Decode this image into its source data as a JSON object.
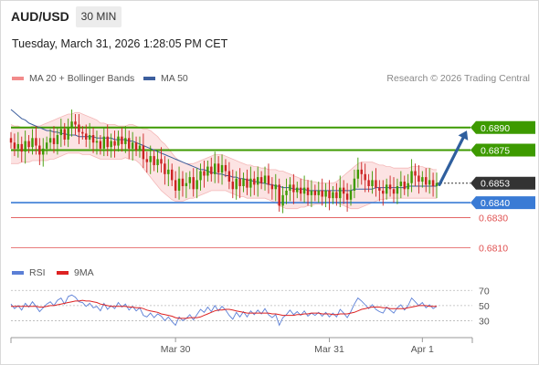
{
  "header": {
    "symbol": "AUD/USD",
    "timeframe": "30 MIN",
    "datetime": "Tuesday, March 31, 2026 1:28:05 PM CET"
  },
  "legend": {
    "ma20_bb": "MA 20 + Bollinger Bands",
    "ma50": "MA 50",
    "ma20_color": "#f28b8b",
    "ma50_color": "#3d5f9e"
  },
  "credit": "Research © 2026 Trading Central",
  "colors": {
    "green_level": "#3d9a00",
    "blue_level": "#3a7bd5",
    "red_level": "#e05050",
    "bull_candle": "#3d9a00",
    "bear_candle": "#cc2222",
    "current_price_bg": "#333333",
    "arrow": "#2f5f9e",
    "rsi": "#5b7fd6",
    "rsi_ma": "#dd2222"
  },
  "price_levels": [
    {
      "value": 0.689,
      "label": "0.6890",
      "kind": "resistance",
      "style": "boxed-green"
    },
    {
      "value": 0.6875,
      "label": "0.6875",
      "kind": "resistance",
      "style": "boxed-green"
    },
    {
      "value": 0.6853,
      "label": "0.6853",
      "kind": "current",
      "style": "boxed-dark"
    },
    {
      "value": 0.684,
      "label": "0.6840",
      "kind": "pivot",
      "style": "boxed-blue"
    },
    {
      "value": 0.683,
      "label": "0.6830",
      "kind": "support",
      "style": "text-red"
    },
    {
      "value": 0.681,
      "label": "0.6810",
      "kind": "support",
      "style": "text-red"
    }
  ],
  "rsi_panel": {
    "legend_rsi": "RSI",
    "legend_ma": "9MA",
    "levels": [
      70,
      50,
      30
    ],
    "level_labels": [
      "70",
      "50",
      "30"
    ],
    "ylim": [
      10,
      80
    ]
  },
  "chart_data": {
    "type": "candlestick",
    "ylim": [
      0.6803,
      0.6916
    ],
    "x_tick_labels": [
      {
        "label": "Mar 30",
        "index": 46
      },
      {
        "label": "Mar 31",
        "index": 89
      },
      {
        "label": "Apr 1",
        "index": 115
      }
    ],
    "closes": [
      0.688,
      0.6876,
      0.6879,
      0.6874,
      0.6881,
      0.6877,
      0.6883,
      0.6878,
      0.6872,
      0.6876,
      0.688,
      0.6883,
      0.6879,
      0.6885,
      0.6889,
      0.6882,
      0.689,
      0.6894,
      0.6892,
      0.6887,
      0.6886,
      0.6882,
      0.6885,
      0.688,
      0.6881,
      0.6876,
      0.6884,
      0.6877,
      0.6881,
      0.6878,
      0.6884,
      0.6879,
      0.6883,
      0.6876,
      0.688,
      0.6875,
      0.6878,
      0.6869,
      0.6867,
      0.6871,
      0.6865,
      0.6869,
      0.6866,
      0.6859,
      0.6862,
      0.6855,
      0.6848,
      0.6856,
      0.6851,
      0.6853,
      0.6857,
      0.6849,
      0.6855,
      0.6861,
      0.6858,
      0.6864,
      0.6859,
      0.6866,
      0.686,
      0.6865,
      0.6861,
      0.6854,
      0.6849,
      0.6856,
      0.6851,
      0.6856,
      0.685,
      0.6856,
      0.6852,
      0.6857,
      0.6853,
      0.6858,
      0.6852,
      0.6849,
      0.6852,
      0.6838,
      0.6845,
      0.6848,
      0.6852,
      0.6847,
      0.685,
      0.6846,
      0.685,
      0.6845,
      0.6848,
      0.6845,
      0.6848,
      0.6844,
      0.6848,
      0.6843,
      0.6847,
      0.6843,
      0.685,
      0.6846,
      0.6842,
      0.6848,
      0.6856,
      0.6862,
      0.6859,
      0.6855,
      0.6851,
      0.6855,
      0.685,
      0.6848,
      0.6846,
      0.6852,
      0.6849,
      0.6846,
      0.6851,
      0.6854,
      0.6849,
      0.6853,
      0.6861,
      0.6858,
      0.6854,
      0.6857,
      0.6852,
      0.6855,
      0.6851,
      0.6853
    ],
    "ma50": [
      0.6902,
      0.69,
      0.6898,
      0.6896,
      0.6895,
      0.6893,
      0.6892,
      0.6891,
      0.689,
      0.6889,
      0.6888,
      0.6888,
      0.6887,
      0.6887,
      0.6886,
      0.6886,
      0.6885,
      0.6885,
      0.6885,
      0.6884,
      0.6884,
      0.6884,
      0.6884,
      0.6884,
      0.6883,
      0.6883,
      0.6883,
      0.6883,
      0.6883,
      0.6882,
      0.6882,
      0.6882,
      0.6882,
      0.6881,
      0.6881,
      0.688,
      0.6879,
      0.6878,
      0.6877,
      0.6876,
      0.6875,
      0.6874,
      0.6873,
      0.6872,
      0.6871,
      0.687,
      0.6869,
      0.6868,
      0.6867,
      0.6866,
      0.6865,
      0.6864,
      0.6863,
      0.6862,
      0.6862,
      0.6861,
      0.686,
      0.686,
      0.6859,
      0.6859,
      0.6858,
      0.6858,
      0.6857,
      0.6857,
      0.6856,
      0.6856,
      0.6855,
      0.6855,
      0.6854,
      0.6854,
      0.6853,
      0.6853,
      0.6852,
      0.6852,
      0.6851,
      0.6851,
      0.685,
      0.685,
      0.685,
      0.6849,
      0.6849,
      0.6849,
      0.6849,
      0.6848,
      0.6848,
      0.6848,
      0.6848,
      0.6848,
      0.6848,
      0.6848,
      0.6848,
      0.6848,
      0.6848,
      0.6848,
      0.6848,
      0.6848,
      0.6849,
      0.6849,
      0.6849,
      0.6849,
      0.6849,
      0.6849,
      0.685,
      0.685,
      0.685,
      0.685,
      0.685,
      0.685,
      0.685,
      0.685,
      0.685,
      0.6851,
      0.6851,
      0.6851,
      0.6851,
      0.6851,
      0.6851,
      0.6851,
      0.6851,
      0.6851
    ],
    "bb_upper": [
      0.6892,
      0.6891,
      0.6891,
      0.689,
      0.689,
      0.689,
      0.6891,
      0.6891,
      0.6891,
      0.6892,
      0.6893,
      0.6894,
      0.6895,
      0.6896,
      0.6897,
      0.6898,
      0.6899,
      0.6899,
      0.69,
      0.69,
      0.6899,
      0.6898,
      0.6897,
      0.6896,
      0.6895,
      0.6893,
      0.6893,
      0.6892,
      0.6892,
      0.6892,
      0.6891,
      0.6891,
      0.6891,
      0.6892,
      0.6892,
      0.6891,
      0.689,
      0.6889,
      0.6889,
      0.6888,
      0.6886,
      0.6884,
      0.6881,
      0.6879,
      0.6876,
      0.6873,
      0.687,
      0.6868,
      0.6867,
      0.6866,
      0.6866,
      0.6866,
      0.6867,
      0.6868,
      0.6869,
      0.687,
      0.6871,
      0.6872,
      0.6872,
      0.6872,
      0.6871,
      0.687,
      0.6869,
      0.6868,
      0.6867,
      0.6866,
      0.6865,
      0.6865,
      0.6864,
      0.6864,
      0.6863,
      0.6863,
      0.6862,
      0.6862,
      0.6862,
      0.6861,
      0.6861,
      0.686,
      0.6859,
      0.6858,
      0.6857,
      0.6856,
      0.6855,
      0.6855,
      0.6854,
      0.6854,
      0.6853,
      0.6853,
      0.6853,
      0.6853,
      0.6853,
      0.6854,
      0.6856,
      0.6858,
      0.686,
      0.6862,
      0.6864,
      0.6866,
      0.6867,
      0.6867,
      0.6867,
      0.6867,
      0.6866,
      0.6865,
      0.6865,
      0.6864,
      0.6864,
      0.6863,
      0.6863,
      0.6863,
      0.6863,
      0.6863,
      0.6864,
      0.6864,
      0.6864,
      0.6864,
      0.6863,
      0.6863,
      0.6862,
      0.6862
    ],
    "bb_lower": [
      0.6866,
      0.6866,
      0.6866,
      0.6867,
      0.6867,
      0.6867,
      0.6868,
      0.6868,
      0.6868,
      0.6868,
      0.6868,
      0.6869,
      0.6869,
      0.687,
      0.6871,
      0.6872,
      0.6873,
      0.6873,
      0.6873,
      0.6873,
      0.6872,
      0.6872,
      0.6872,
      0.6871,
      0.687,
      0.6869,
      0.6869,
      0.6869,
      0.6869,
      0.6869,
      0.6869,
      0.6869,
      0.687,
      0.6869,
      0.6869,
      0.6868,
      0.6866,
      0.6863,
      0.686,
      0.6857,
      0.6854,
      0.6851,
      0.6848,
      0.6846,
      0.6844,
      0.6842,
      0.6841,
      0.6841,
      0.6841,
      0.6842,
      0.6843,
      0.6843,
      0.6844,
      0.6845,
      0.6846,
      0.6847,
      0.6848,
      0.6848,
      0.6848,
      0.6848,
      0.6848,
      0.6847,
      0.6846,
      0.6845,
      0.6844,
      0.6844,
      0.6843,
      0.6843,
      0.6843,
      0.6843,
      0.6843,
      0.6843,
      0.6842,
      0.6841,
      0.684,
      0.6838,
      0.6837,
      0.6836,
      0.6836,
      0.6836,
      0.6836,
      0.6837,
      0.6837,
      0.6838,
      0.6838,
      0.6839,
      0.6839,
      0.6839,
      0.684,
      0.684,
      0.684,
      0.684,
      0.6839,
      0.6838,
      0.6837,
      0.6836,
      0.6836,
      0.6836,
      0.6837,
      0.6838,
      0.6839,
      0.684,
      0.6841,
      0.6842,
      0.6842,
      0.6843,
      0.6843,
      0.6843,
      0.6843,
      0.6843,
      0.6843,
      0.6843,
      0.6843,
      0.6843,
      0.6843,
      0.6843,
      0.6843,
      0.6843,
      0.6843,
      0.6843
    ],
    "rsi": [
      52,
      46,
      50,
      44,
      53,
      48,
      55,
      49,
      42,
      47,
      52,
      55,
      50,
      57,
      60,
      52,
      62,
      64,
      61,
      55,
      54,
      49,
      53,
      47,
      49,
      43,
      53,
      45,
      50,
      46,
      54,
      48,
      52,
      44,
      49,
      43,
      47,
      37,
      35,
      40,
      34,
      39,
      36,
      30,
      35,
      29,
      24,
      35,
      30,
      33,
      38,
      31,
      38,
      45,
      41,
      48,
      42,
      50,
      43,
      49,
      44,
      37,
      32,
      41,
      35,
      42,
      35,
      43,
      38,
      44,
      39,
      46,
      38,
      34,
      38,
      24,
      34,
      38,
      44,
      38,
      42,
      37,
      43,
      36,
      40,
      37,
      41,
      36,
      41,
      35,
      40,
      35,
      45,
      40,
      34,
      42,
      52,
      60,
      56,
      51,
      46,
      51,
      45,
      42,
      40,
      48,
      44,
      40,
      47,
      51,
      44,
      50,
      60,
      55,
      50,
      54,
      47,
      51,
      46,
      49
    ],
    "rsi_ma": [
      49,
      49,
      49,
      49,
      49,
      49,
      49,
      49,
      48,
      48,
      49,
      50,
      50,
      51,
      52,
      53,
      54,
      55,
      56,
      56,
      57,
      56,
      56,
      55,
      54,
      52,
      51,
      50,
      49,
      49,
      49,
      49,
      49,
      48,
      48,
      47,
      47,
      46,
      44,
      43,
      42,
      41,
      39,
      38,
      37,
      36,
      34,
      33,
      33,
      33,
      34,
      34,
      34,
      35,
      37,
      39,
      41,
      43,
      44,
      44,
      45,
      45,
      44,
      43,
      42,
      41,
      40,
      40,
      40,
      40,
      40,
      40,
      40,
      39,
      39,
      38,
      37,
      37,
      37,
      37,
      38,
      38,
      39,
      39,
      40,
      40,
      40,
      39,
      39,
      39,
      38,
      38,
      39,
      39,
      39,
      40,
      41,
      43,
      45,
      46,
      47,
      48,
      48,
      48,
      47,
      47,
      46,
      46,
      46,
      46,
      46,
      47,
      48,
      49,
      50,
      50,
      50,
      49,
      49,
      49
    ]
  }
}
